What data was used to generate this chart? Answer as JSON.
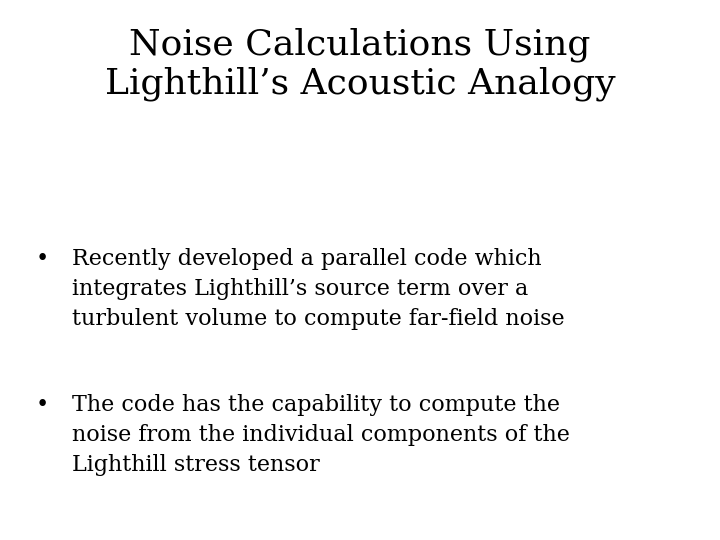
{
  "background_color": "#ffffff",
  "title_line1": "Noise Calculations Using",
  "title_line2": "Lighthill’s Acoustic Analogy",
  "title_fontsize": 26,
  "title_color": "#000000",
  "bullet1_lines": [
    "Recently developed a parallel code which",
    "integrates Lighthill’s source term over a",
    "turbulent volume to compute far-field noise"
  ],
  "bullet2_lines": [
    "The code has the capability to compute the",
    "noise from the individual components of the",
    "Lighthill stress tensor"
  ],
  "bullet_fontsize": 16,
  "bullet_color": "#000000",
  "bullet_symbol": "•"
}
